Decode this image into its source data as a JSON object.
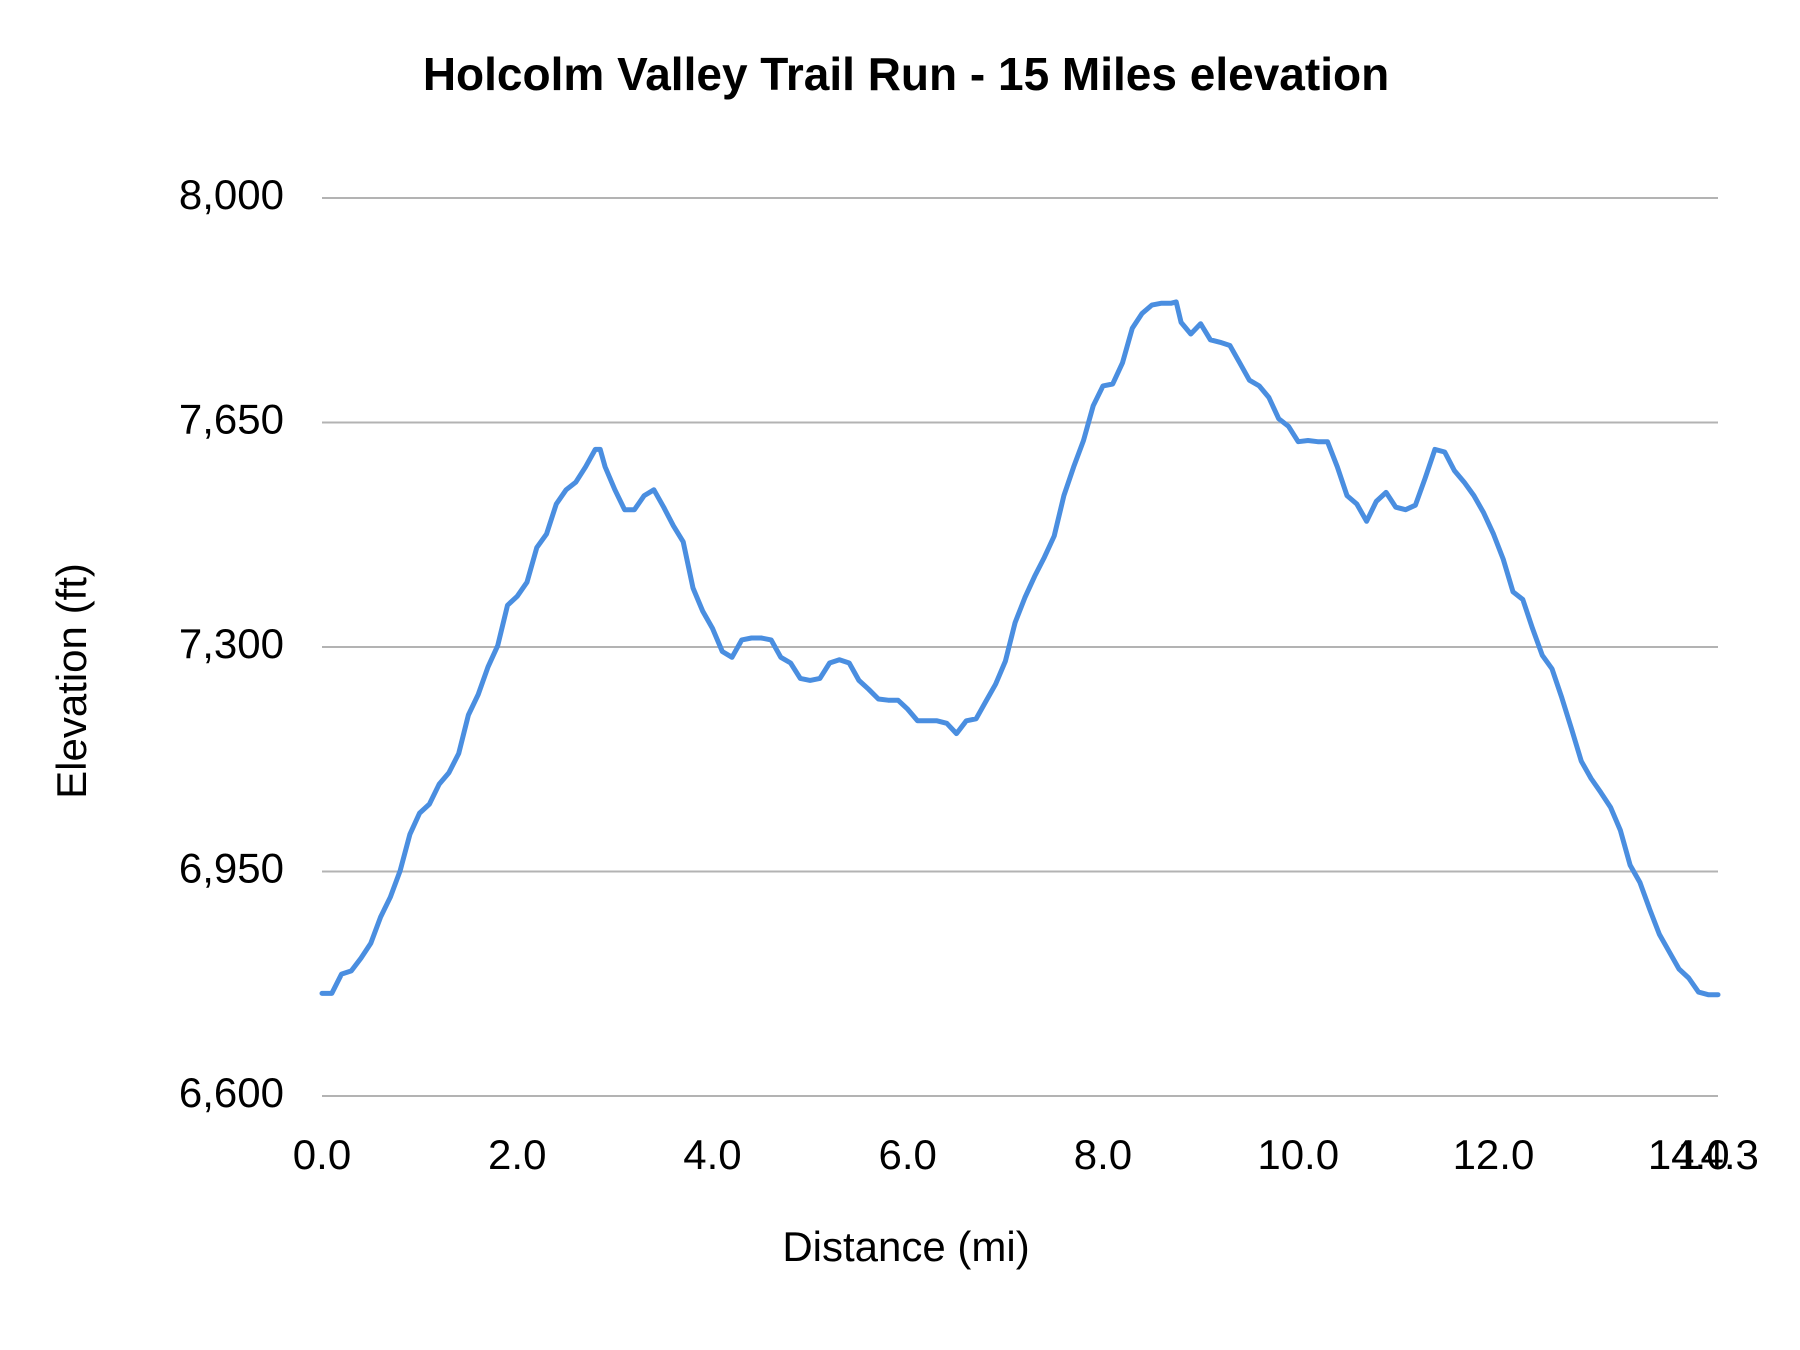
{
  "chart_data": {
    "type": "line",
    "title": "Holcolm Valley Trail Run - 15 Miles elevation",
    "x_label": "Distance (mi)",
    "y_label": "Elevation (ft)",
    "x": [
      0.0,
      0.1,
      0.2,
      0.3,
      0.4,
      0.5,
      0.6,
      0.7,
      0.8,
      0.9,
      1.0,
      1.1,
      1.2,
      1.3,
      1.4,
      1.5,
      1.6,
      1.7,
      1.8,
      1.9,
      2.0,
      2.1,
      2.2,
      2.3,
      2.4,
      2.5,
      2.6,
      2.7,
      2.8,
      2.85,
      2.9,
      3.0,
      3.1,
      3.2,
      3.3,
      3.4,
      3.5,
      3.6,
      3.7,
      3.8,
      3.9,
      4.0,
      4.1,
      4.2,
      4.3,
      4.4,
      4.5,
      4.6,
      4.7,
      4.8,
      4.9,
      5.0,
      5.1,
      5.2,
      5.3,
      5.4,
      5.5,
      5.6,
      5.7,
      5.8,
      5.9,
      6.0,
      6.1,
      6.2,
      6.3,
      6.4,
      6.5,
      6.6,
      6.7,
      6.8,
      6.9,
      7.0,
      7.1,
      7.2,
      7.3,
      7.4,
      7.5,
      7.6,
      7.7,
      7.8,
      7.9,
      8.0,
      8.1,
      8.2,
      8.3,
      8.4,
      8.5,
      8.6,
      8.7,
      8.75,
      8.8,
      8.9,
      9.0,
      9.1,
      9.2,
      9.3,
      9.4,
      9.5,
      9.6,
      9.7,
      9.8,
      9.9,
      10.0,
      10.1,
      10.2,
      10.3,
      10.4,
      10.5,
      10.6,
      10.7,
      10.8,
      10.9,
      11.0,
      11.1,
      11.2,
      11.3,
      11.4,
      11.5,
      11.6,
      11.7,
      11.8,
      11.9,
      12.0,
      12.1,
      12.2,
      12.3,
      12.4,
      12.5,
      12.6,
      12.7,
      12.8,
      12.9,
      13.0,
      13.1,
      13.2,
      13.3,
      13.4,
      13.5,
      13.6,
      13.7,
      13.8,
      13.9,
      14.0,
      14.1,
      14.2,
      14.3
    ],
    "series": [
      {
        "name": "Elevation",
        "color": "#4a8ee0",
        "values": [
          6760,
          6760,
          6790,
          6795,
          6815,
          6838,
          6879,
          6910,
          6951,
          7008,
          7041,
          7055,
          7086,
          7104,
          7134,
          7194,
          7226,
          7269,
          7302,
          7365,
          7379,
          7401,
          7455,
          7476,
          7523,
          7545,
          7557,
          7581,
          7608,
          7608,
          7581,
          7545,
          7514,
          7514,
          7536,
          7545,
          7518,
          7489,
          7464,
          7392,
          7356,
          7329,
          7293,
          7284,
          7311,
          7314,
          7314,
          7311,
          7284,
          7275,
          7251,
          7248,
          7251,
          7275,
          7280,
          7275,
          7248,
          7234,
          7219,
          7217,
          7217,
          7203,
          7185,
          7185,
          7185,
          7181,
          7165,
          7185,
          7188,
          7215,
          7242,
          7278,
          7338,
          7377,
          7410,
          7440,
          7473,
          7536,
          7581,
          7622,
          7676,
          7707,
          7710,
          7743,
          7797,
          7820,
          7833,
          7836,
          7836,
          7838,
          7806,
          7788,
          7804,
          7779,
          7775,
          7770,
          7743,
          7716,
          7707,
          7689,
          7656,
          7644,
          7620,
          7622,
          7620,
          7620,
          7581,
          7536,
          7523,
          7496,
          7527,
          7541,
          7518,
          7514,
          7521,
          7563,
          7608,
          7604,
          7575,
          7557,
          7536,
          7509,
          7476,
          7437,
          7386,
          7374,
          7329,
          7287,
          7266,
          7221,
          7172,
          7122,
          7095,
          7073,
          7050,
          7014,
          6960,
          6933,
          6891,
          6852,
          6825,
          6798,
          6784,
          6762,
          6758,
          6758
        ]
      }
    ],
    "xlim": [
      0,
      14.3
    ],
    "xticks": [
      {
        "value": 0,
        "label": "0.0"
      },
      {
        "value": 2,
        "label": "2.0"
      },
      {
        "value": 4,
        "label": "4.0"
      },
      {
        "value": 6,
        "label": "6.0"
      },
      {
        "value": 8,
        "label": "8.0"
      },
      {
        "value": 10,
        "label": "10.0"
      },
      {
        "value": 12,
        "label": "12.0"
      },
      {
        "value": 14,
        "label": "14.0"
      },
      14.3
    ],
    "ylim": [
      6600,
      8000
    ],
    "yticks": [
      {
        "value": 6600,
        "label": "6,600"
      },
      {
        "value": 6950,
        "label": "6,950"
      },
      {
        "value": 7300,
        "label": "7,300"
      },
      {
        "value": 7650,
        "label": "7,650"
      },
      {
        "value": 8000,
        "label": "8,000"
      }
    ],
    "grid": true
  }
}
